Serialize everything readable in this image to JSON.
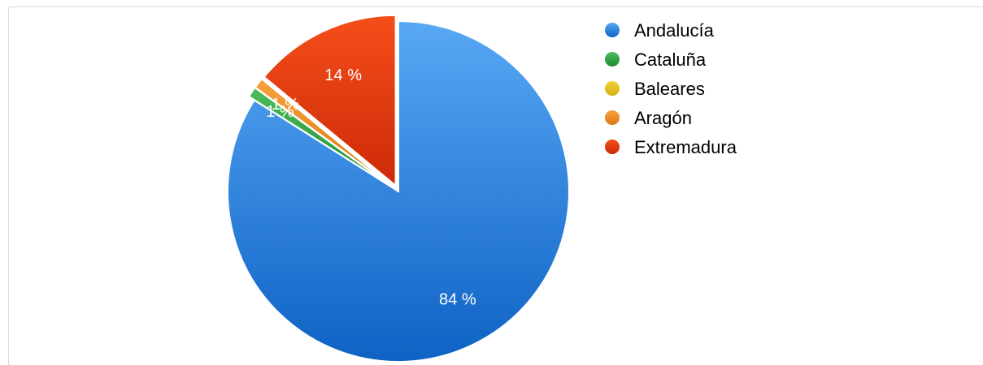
{
  "chart_data": {
    "type": "pie",
    "title": "",
    "categories": [
      "Andalucía",
      "Cataluña",
      "Baleares",
      "Aragón",
      "Extremadura"
    ],
    "values": [
      84,
      1,
      0,
      1,
      14
    ],
    "data_labels": [
      "84 %",
      "1 %",
      "",
      "1 %",
      "14 %"
    ],
    "colors": [
      "#3b8fe3",
      "#2ea043",
      "#e3c21e",
      "#f0902a",
      "#e8401c"
    ],
    "gradients": [
      [
        "#58a8f5",
        "#0e62c4"
      ],
      [
        "#4dbd5a",
        "#1f8a33"
      ],
      [
        "#f2d33a",
        "#d4b010"
      ],
      [
        "#f7a23a",
        "#de7516"
      ],
      [
        "#f54e1a",
        "#cc2a08"
      ]
    ],
    "legend_position": "top-right",
    "start_angle_deg": 0,
    "direction": "clockwise"
  }
}
